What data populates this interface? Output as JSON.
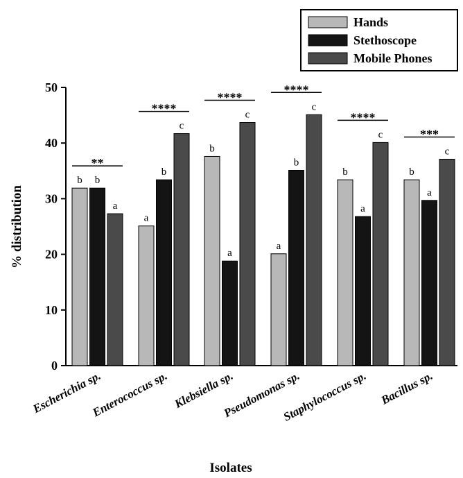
{
  "chart_data": {
    "type": "bar",
    "xlabel": "Isolates",
    "ylabel": "% distribution",
    "ylim": [
      0,
      50
    ],
    "yticks": [
      "0",
      "10",
      "20",
      "30",
      "40",
      "50"
    ],
    "categories": [
      "Escherichia sp.",
      "Enterococcus sp.",
      "Klebsiella sp.",
      "Pseudomonas sp.",
      "Staphylococcus sp.",
      "Bacillus sp."
    ],
    "series": [
      {
        "name": "Hands",
        "color": "#b8b8b8",
        "values": [
          31.9,
          25.1,
          37.6,
          20.1,
          33.4,
          33.4
        ],
        "letters": [
          "b",
          "a",
          "b",
          "a",
          "b",
          "b"
        ]
      },
      {
        "name": "Stethoscope",
        "color": "#141414",
        "values": [
          31.9,
          33.4,
          18.8,
          35.1,
          26.8,
          29.7
        ],
        "letters": [
          "b",
          "b",
          "a",
          "b",
          "a",
          "a"
        ]
      },
      {
        "name": "Mobile Phones",
        "color": "#4a4a4a",
        "values": [
          27.3,
          41.7,
          43.7,
          45.1,
          40.1,
          37.1
        ],
        "letters": [
          "a",
          "c",
          "c",
          "c",
          "c",
          "c"
        ]
      }
    ],
    "significance": [
      "**",
      "****",
      "****",
      "****",
      "****",
      "***"
    ],
    "legend_position": "top-right",
    "grid": false
  }
}
